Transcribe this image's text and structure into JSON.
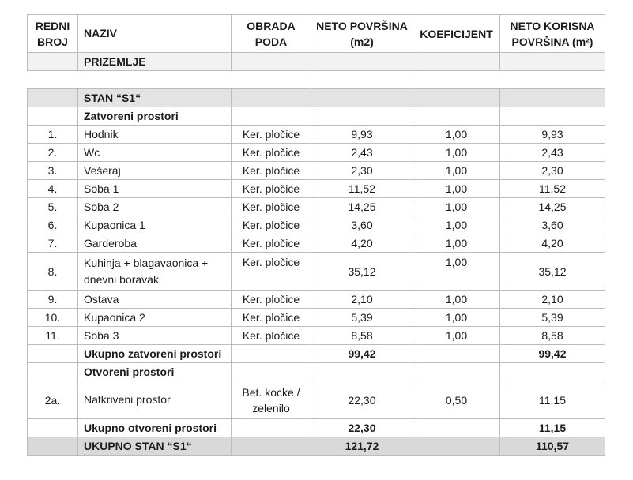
{
  "colors": {
    "border": "#bcbcbc",
    "prizemlje_row_bg": "#f2f2f2",
    "stan_row_bg": "#e3e3e3",
    "grand_total_row_bg": "#d9d9d9",
    "text": "#1b1b1b"
  },
  "header_table": {
    "columns": [
      "REDNI BROJ",
      "NAZIV",
      "OBRADA PODA",
      "NETO POVRŠINA (m2)",
      "KOEFICIJENT",
      "NETO KORISNA POVRŠINA (m²)"
    ],
    "section_label": "PRIZEMLJE"
  },
  "main_table": {
    "rows": [
      {
        "style": "stan",
        "num": "",
        "naziv": "STAN “S1“",
        "obrada": "",
        "neto": "",
        "koef": "",
        "korisna": ""
      },
      {
        "style": "subhead",
        "num": "",
        "naziv": "Zatvoreni prostori",
        "obrada": "",
        "neto": "",
        "koef": "",
        "korisna": ""
      },
      {
        "style": "data",
        "num": "1.",
        "naziv": "Hodnik",
        "obrada": "Ker. pločice",
        "neto": "9,93",
        "koef": "1,00",
        "korisna": "9,93"
      },
      {
        "style": "data",
        "num": "2.",
        "naziv": "Wc",
        "obrada": "Ker. pločice",
        "neto": "2,43",
        "koef": "1,00",
        "korisna": "2,43"
      },
      {
        "style": "data",
        "num": "3.",
        "naziv": "Vešeraj",
        "obrada": "Ker. pločice",
        "neto": "2,30",
        "koef": "1,00",
        "korisna": "2,30"
      },
      {
        "style": "data",
        "num": "4.",
        "naziv": "Soba 1",
        "obrada": "Ker. pločice",
        "neto": "11,52",
        "koef": "1,00",
        "korisna": "11,52"
      },
      {
        "style": "data",
        "num": "5.",
        "naziv": "Soba 2",
        "obrada": "Ker. pločice",
        "neto": "14,25",
        "koef": "1,00",
        "korisna": "14,25"
      },
      {
        "style": "data",
        "num": "6.",
        "naziv": "Kupaonica 1",
        "obrada": "Ker. pločice",
        "neto": "3,60",
        "koef": "1,00",
        "korisna": "3,60"
      },
      {
        "style": "data",
        "num": "7.",
        "naziv": "Garderoba",
        "obrada": "Ker. pločice",
        "neto": "4,20",
        "koef": "1,00",
        "korisna": "4,20"
      },
      {
        "style": "data",
        "num": "8.",
        "naziv": "Kuhinja + blagavaonica + dnevni boravak",
        "obrada": "Ker. pločice",
        "neto": "35,12",
        "koef": "1,00",
        "korisna": "35,12",
        "tall": true,
        "top_cells": [
          "obrada",
          "koef"
        ]
      },
      {
        "style": "data",
        "num": "9.",
        "naziv": "Ostava",
        "obrada": "Ker. pločice",
        "neto": "2,10",
        "koef": "1,00",
        "korisna": "2,10"
      },
      {
        "style": "data",
        "num": "10.",
        "naziv": "Kupaonica 2",
        "obrada": "Ker. pločice",
        "neto": "5,39",
        "koef": "1,00",
        "korisna": "5,39"
      },
      {
        "style": "data",
        "num": "11.",
        "naziv": "Soba 3",
        "obrada": "Ker. pločice",
        "neto": "8,58",
        "koef": "1,00",
        "korisna": "8,58"
      },
      {
        "style": "total",
        "num": "",
        "naziv": "Ukupno zatvoreni prostori",
        "obrada": "",
        "neto": "99,42",
        "koef": "",
        "korisna": "99,42"
      },
      {
        "style": "subhead",
        "num": "",
        "naziv": "Otvoreni prostori",
        "obrada": "",
        "neto": "",
        "koef": "",
        "korisna": ""
      },
      {
        "style": "data",
        "num": "2a.",
        "naziv": "Natkriveni prostor",
        "obrada": "Bet. kocke / zelenilo",
        "neto": "22,30",
        "koef": "0,50",
        "korisna": "11,15",
        "tall": true
      },
      {
        "style": "total",
        "num": "",
        "naziv": "Ukupno otvoreni prostori",
        "obrada": "",
        "neto": "22,30",
        "koef": "",
        "korisna": "11,15"
      },
      {
        "style": "grand",
        "num": "",
        "naziv": "UKUPNO STAN “S1“",
        "obrada": "",
        "neto": "121,72",
        "koef": "",
        "korisna": "110,57"
      }
    ]
  }
}
